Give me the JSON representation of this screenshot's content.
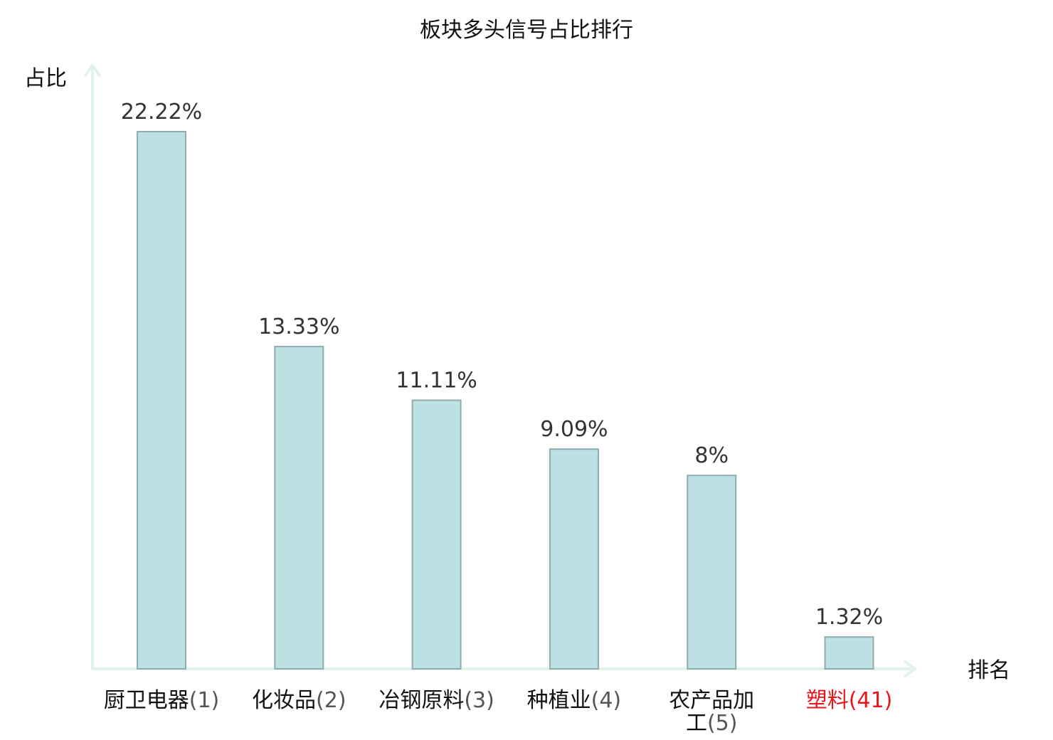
{
  "chart_data": {
    "type": "bar",
    "title": "板块多头信号占比排行",
    "ylabel": "占比",
    "xlabel": "排名",
    "categories": [
      {
        "name": "厨卫电器",
        "rank": "(1)",
        "highlight": false
      },
      {
        "name": "化妆品",
        "rank": "(2)",
        "highlight": false
      },
      {
        "name": "冶钢原料",
        "rank": "(3)",
        "highlight": false
      },
      {
        "name": "种植业",
        "rank": "(4)",
        "highlight": false
      },
      {
        "name": "农产品加工",
        "rank": "(5)",
        "highlight": false
      },
      {
        "name": "塑料",
        "rank": "(41)",
        "highlight": true
      }
    ],
    "values": [
      22.22,
      13.33,
      11.11,
      9.09,
      8,
      1.32
    ],
    "value_labels": [
      "22.22%",
      "13.33%",
      "11.11%",
      "9.09%",
      "8%",
      "1.32%"
    ],
    "ylim": [
      0,
      25
    ],
    "grid": false,
    "colors": {
      "bar_fill": "#bde0e3",
      "bar_stroke": "#8fadb0",
      "axis": "#e0f2ef",
      "highlight": "#e8161b"
    }
  }
}
